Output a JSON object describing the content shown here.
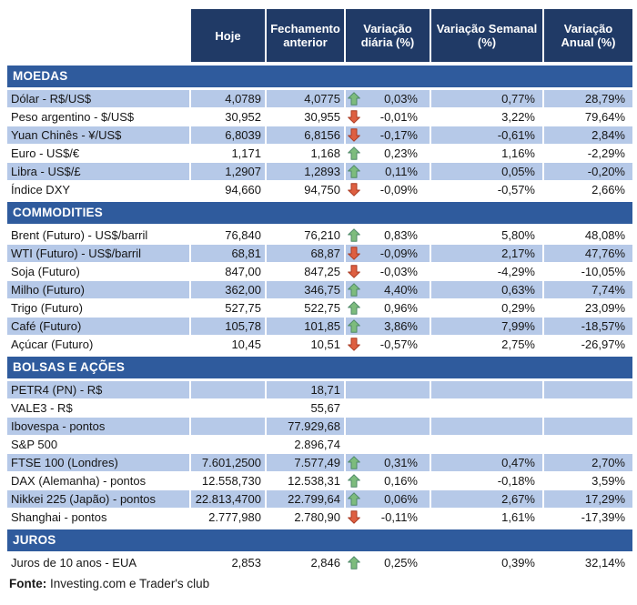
{
  "colors": {
    "header_bg": "#203A66",
    "banner_bg": "#2F5B9D",
    "stripe_bg": "#B6C9E8",
    "arrow_up_fill": "#7DBC7D",
    "arrow_up_stroke": "#4E8868",
    "arrow_down_fill": "#DE5F41",
    "arrow_down_stroke": "#A93A22"
  },
  "chart_data": {
    "type": "table",
    "columns": [
      "Hoje",
      "Fechamento anterior",
      "Variação diária (%)",
      "Variação Semanal (%)",
      "Variação Anual (%)"
    ],
    "sections": [
      {
        "title": "MOEDAS",
        "first_row_shaded": true,
        "rows": [
          {
            "label": "Dólar - R$/US$",
            "hoje": "4,0789",
            "fechamento": "4,0775",
            "arrow": "up",
            "diaria": "0,03%",
            "semanal": "0,77%",
            "anual": "28,79%"
          },
          {
            "label": "Peso argentino - $/US$",
            "hoje": "30,952",
            "fechamento": "30,955",
            "arrow": "down",
            "diaria": "-0,01%",
            "semanal": "3,22%",
            "anual": "79,64%"
          },
          {
            "label": "Yuan Chinês - ¥/US$",
            "hoje": "6,8039",
            "fechamento": "6,8156",
            "arrow": "down",
            "diaria": "-0,17%",
            "semanal": "-0,61%",
            "anual": "2,84%"
          },
          {
            "label": "Euro - US$/€",
            "hoje": "1,171",
            "fechamento": "1,168",
            "arrow": "up",
            "diaria": "0,23%",
            "semanal": "1,16%",
            "anual": "-2,29%"
          },
          {
            "label": "Libra - US$/£",
            "hoje": "1,2907",
            "fechamento": "1,2893",
            "arrow": "up",
            "diaria": "0,11%",
            "semanal": "0,05%",
            "anual": "-0,20%"
          },
          {
            "label": "Índice DXY",
            "hoje": "94,660",
            "fechamento": "94,750",
            "arrow": "down",
            "diaria": "-0,09%",
            "semanal": "-0,57%",
            "anual": "2,66%"
          }
        ]
      },
      {
        "title": "COMMODITIES",
        "first_row_shaded": false,
        "rows": [
          {
            "label": "Brent (Futuro) - US$/barril",
            "hoje": "76,840",
            "fechamento": "76,210",
            "arrow": "up",
            "diaria": "0,83%",
            "semanal": "5,80%",
            "anual": "48,08%"
          },
          {
            "label": "WTI (Futuro) - US$/barril",
            "hoje": "68,81",
            "fechamento": "68,87",
            "arrow": "down",
            "diaria": "-0,09%",
            "semanal": "2,17%",
            "anual": "47,76%"
          },
          {
            "label": "Soja (Futuro)",
            "hoje": "847,00",
            "fechamento": "847,25",
            "arrow": "down",
            "diaria": "-0,03%",
            "semanal": "-4,29%",
            "anual": "-10,05%"
          },
          {
            "label": "Milho (Futuro)",
            "hoje": "362,00",
            "fechamento": "346,75",
            "arrow": "up",
            "diaria": "4,40%",
            "semanal": "0,63%",
            "anual": "7,74%"
          },
          {
            "label": "Trigo (Futuro)",
            "hoje": "527,75",
            "fechamento": "522,75",
            "arrow": "up",
            "diaria": "0,96%",
            "semanal": "0,29%",
            "anual": "23,09%"
          },
          {
            "label": "Café (Futuro)",
            "hoje": "105,78",
            "fechamento": "101,85",
            "arrow": "up",
            "diaria": "3,86%",
            "semanal": "7,99%",
            "anual": "-18,57%"
          },
          {
            "label": "Açúcar (Futuro)",
            "hoje": "10,45",
            "fechamento": "10,51",
            "arrow": "down",
            "diaria": "-0,57%",
            "semanal": "2,75%",
            "anual": "-26,97%"
          }
        ]
      },
      {
        "title": "BOLSAS E AÇÕES",
        "first_row_shaded": true,
        "rows": [
          {
            "label": "PETR4 (PN) - R$",
            "hoje": "",
            "fechamento": "18,71",
            "arrow": "",
            "diaria": "",
            "semanal": "",
            "anual": ""
          },
          {
            "label": "VALE3 - R$",
            "hoje": "",
            "fechamento": "55,67",
            "arrow": "",
            "diaria": "",
            "semanal": "",
            "anual": ""
          },
          {
            "label": "Ibovespa - pontos",
            "hoje": "",
            "fechamento": "77.929,68",
            "arrow": "",
            "diaria": "",
            "semanal": "",
            "anual": ""
          },
          {
            "label": "S&P 500",
            "hoje": "",
            "fechamento": "2.896,74",
            "arrow": "",
            "diaria": "",
            "semanal": "",
            "anual": ""
          },
          {
            "label": "FTSE 100 (Londres)",
            "hoje": "7.601,2500",
            "fechamento": "7.577,49",
            "arrow": "up",
            "diaria": "0,31%",
            "semanal": "0,47%",
            "anual": "2,70%"
          },
          {
            "label": "DAX (Alemanha) - pontos",
            "hoje": "12.558,730",
            "fechamento": "12.538,31",
            "arrow": "up",
            "diaria": "0,16%",
            "semanal": "-0,18%",
            "anual": "3,59%"
          },
          {
            "label": "Nikkei 225 (Japão) - pontos",
            "hoje": "22.813,4700",
            "fechamento": "22.799,64",
            "arrow": "up",
            "diaria": "0,06%",
            "semanal": "2,67%",
            "anual": "17,29%"
          },
          {
            "label": "Shanghai - pontos",
            "hoje": "2.777,980",
            "fechamento": "2.780,90",
            "arrow": "down",
            "diaria": "-0,11%",
            "semanal": "1,61%",
            "anual": "-17,39%"
          }
        ]
      },
      {
        "title": "JUROS",
        "first_row_shaded": false,
        "rows": [
          {
            "label": "Juros de 10 anos - EUA",
            "hoje": "2,853",
            "fechamento": "2,846",
            "arrow": "up",
            "diaria": "0,25%",
            "semanal": "0,39%",
            "anual": "32,14%"
          }
        ]
      }
    ]
  },
  "footer": {
    "label": "Fonte:",
    "text": " Investing.com e Trader's club"
  }
}
